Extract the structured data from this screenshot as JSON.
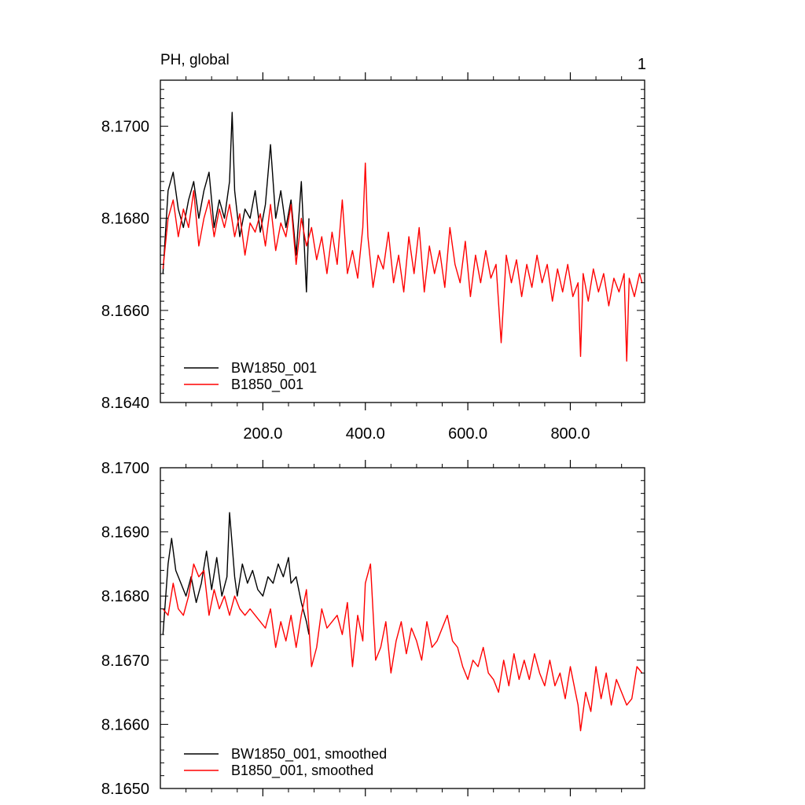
{
  "panel_label": "1",
  "chart_data": [
    {
      "type": "line",
      "title": "PH, global",
      "xlim": [
        0,
        945
      ],
      "ylim": [
        8.164,
        8.171
      ],
      "x_ticks": [
        200,
        400,
        600,
        800
      ],
      "x_tick_labels": [
        "200.0",
        "400.0",
        "600.0",
        "800.0"
      ],
      "y_ticks": [
        8.164,
        8.166,
        8.168,
        8.17
      ],
      "y_tick_labels": [
        "8.1640",
        "8.1660",
        "8.1680",
        "8.1700"
      ],
      "legend_position": "bottom-left",
      "series": [
        {
          "name": "BW1850_001",
          "color": "#000000",
          "x": [
            5,
            15,
            25,
            35,
            45,
            55,
            65,
            75,
            85,
            95,
            105,
            115,
            125,
            135,
            140,
            145,
            155,
            165,
            175,
            185,
            195,
            205,
            215,
            225,
            235,
            245,
            255,
            265,
            275,
            285,
            290
          ],
          "y": [
            8.1668,
            8.1686,
            8.169,
            8.1682,
            8.1678,
            8.1684,
            8.1688,
            8.168,
            8.1686,
            8.169,
            8.1678,
            8.1684,
            8.168,
            8.1688,
            8.1703,
            8.1686,
            8.1676,
            8.1682,
            8.168,
            8.1686,
            8.1677,
            8.1683,
            8.1696,
            8.168,
            8.1686,
            8.1678,
            8.1684,
            8.1672,
            8.1688,
            8.1664,
            8.168
          ]
        },
        {
          "name": "B1850_001",
          "color": "#ff0000",
          "x": [
            5,
            15,
            25,
            35,
            45,
            55,
            65,
            75,
            85,
            95,
            105,
            115,
            125,
            135,
            145,
            155,
            165,
            175,
            185,
            195,
            205,
            215,
            225,
            235,
            245,
            255,
            265,
            275,
            285,
            295,
            305,
            315,
            325,
            335,
            345,
            355,
            365,
            375,
            385,
            395,
            400,
            405,
            415,
            425,
            435,
            445,
            455,
            465,
            475,
            485,
            495,
            505,
            515,
            525,
            535,
            545,
            555,
            565,
            575,
            585,
            595,
            605,
            615,
            625,
            635,
            645,
            655,
            665,
            675,
            685,
            695,
            705,
            715,
            725,
            735,
            745,
            755,
            765,
            775,
            785,
            795,
            805,
            815,
            820,
            825,
            835,
            845,
            855,
            865,
            875,
            885,
            895,
            905,
            910,
            915,
            925,
            935,
            940
          ],
          "y": [
            8.1669,
            8.168,
            8.1684,
            8.1676,
            8.1682,
            8.1678,
            8.1686,
            8.1674,
            8.168,
            8.1684,
            8.1676,
            8.1682,
            8.1678,
            8.1683,
            8.1676,
            8.1681,
            8.1672,
            8.1679,
            8.1677,
            8.1681,
            8.1674,
            8.1683,
            8.1673,
            8.1679,
            8.1676,
            8.1683,
            8.167,
            8.168,
            8.1674,
            8.1678,
            8.1671,
            8.1676,
            8.1668,
            8.1677,
            8.167,
            8.1684,
            8.1668,
            8.1673,
            8.1667,
            8.1678,
            8.1692,
            8.1676,
            8.1665,
            8.1672,
            8.1669,
            8.1677,
            8.1666,
            8.1672,
            8.1664,
            8.1676,
            8.1668,
            8.1678,
            8.1664,
            8.1674,
            8.1668,
            8.1673,
            8.1665,
            8.1678,
            8.167,
            8.1666,
            8.1675,
            8.1663,
            8.1672,
            8.1666,
            8.1673,
            8.1667,
            8.167,
            8.1653,
            8.1672,
            8.1666,
            8.1671,
            8.1663,
            8.167,
            8.1665,
            8.1672,
            8.1666,
            8.167,
            8.1662,
            8.1669,
            8.1664,
            8.167,
            8.1663,
            8.1666,
            8.165,
            8.1668,
            8.1662,
            8.1669,
            8.1664,
            8.1668,
            8.1661,
            8.1667,
            8.1664,
            8.1668,
            8.1649,
            8.1667,
            8.1663,
            8.1668,
            8.1666
          ]
        }
      ]
    },
    {
      "type": "line",
      "xlim": [
        0,
        945
      ],
      "ylim": [
        8.165,
        8.17
      ],
      "x_ticks": [
        200,
        400,
        600,
        800
      ],
      "y_ticks": [
        8.165,
        8.166,
        8.167,
        8.168,
        8.169,
        8.17
      ],
      "y_tick_labels": [
        "8.1650",
        "8.1660",
        "8.1670",
        "8.1680",
        "8.1690",
        "8.1700"
      ],
      "legend_position": "bottom-left",
      "series": [
        {
          "name": "BW1850_001, smoothed",
          "color": "#000000",
          "x": [
            5,
            15,
            22,
            30,
            40,
            50,
            60,
            70,
            80,
            90,
            100,
            110,
            120,
            130,
            135,
            140,
            145,
            150,
            160,
            170,
            180,
            190,
            200,
            210,
            220,
            230,
            240,
            250,
            255,
            265,
            275,
            285,
            290
          ],
          "y": [
            8.1674,
            8.1685,
            8.1689,
            8.1684,
            8.1682,
            8.168,
            8.1683,
            8.1679,
            8.1682,
            8.1687,
            8.1681,
            8.1686,
            8.168,
            8.1683,
            8.1693,
            8.1688,
            8.1683,
            8.168,
            8.1685,
            8.1682,
            8.1684,
            8.1681,
            8.168,
            8.1683,
            8.1682,
            8.1685,
            8.1683,
            8.1686,
            8.1682,
            8.1683,
            8.1679,
            8.1676,
            8.1674
          ]
        },
        {
          "name": "B1850_001, smoothed",
          "color": "#ff0000",
          "x": [
            5,
            15,
            25,
            35,
            45,
            55,
            65,
            75,
            85,
            95,
            105,
            115,
            125,
            135,
            145,
            155,
            165,
            175,
            185,
            195,
            205,
            215,
            225,
            235,
            245,
            255,
            265,
            275,
            285,
            295,
            305,
            315,
            325,
            335,
            345,
            355,
            365,
            375,
            385,
            395,
            400,
            410,
            420,
            430,
            440,
            450,
            460,
            470,
            480,
            490,
            500,
            510,
            520,
            530,
            540,
            550,
            560,
            570,
            580,
            590,
            600,
            610,
            620,
            630,
            640,
            650,
            660,
            670,
            680,
            690,
            700,
            710,
            720,
            730,
            740,
            750,
            760,
            770,
            780,
            790,
            800,
            810,
            815,
            820,
            830,
            840,
            850,
            860,
            870,
            880,
            890,
            900,
            910,
            920,
            930,
            940
          ],
          "y": [
            8.1678,
            8.1677,
            8.1682,
            8.1678,
            8.1677,
            8.168,
            8.1685,
            8.1683,
            8.1684,
            8.1677,
            8.1681,
            8.1678,
            8.168,
            8.1677,
            8.168,
            8.1678,
            8.1677,
            8.1678,
            8.1677,
            8.1676,
            8.1675,
            8.1678,
            8.1672,
            8.1676,
            8.1673,
            8.1677,
            8.1672,
            8.1677,
            8.1681,
            8.1669,
            8.1672,
            8.1678,
            8.1675,
            8.1676,
            8.1677,
            8.1674,
            8.1679,
            8.1669,
            8.1677,
            8.1673,
            8.1682,
            8.1685,
            8.167,
            8.1672,
            8.1676,
            8.1668,
            8.1673,
            8.1676,
            8.1671,
            8.1675,
            8.1673,
            8.167,
            8.1676,
            8.1672,
            8.1673,
            8.1675,
            8.1677,
            8.1673,
            8.1672,
            8.1669,
            8.1667,
            8.167,
            8.1669,
            8.1672,
            8.1668,
            8.1667,
            8.1665,
            8.167,
            8.1666,
            8.1671,
            8.1667,
            8.167,
            8.1667,
            8.1671,
            8.1668,
            8.1666,
            8.167,
            8.1666,
            8.1668,
            8.1664,
            8.1669,
            8.1665,
            8.1663,
            8.1659,
            8.1665,
            8.1662,
            8.1669,
            8.1664,
            8.1668,
            8.1663,
            8.1667,
            8.1665,
            8.1663,
            8.1664,
            8.1669,
            8.1668
          ]
        }
      ]
    }
  ]
}
